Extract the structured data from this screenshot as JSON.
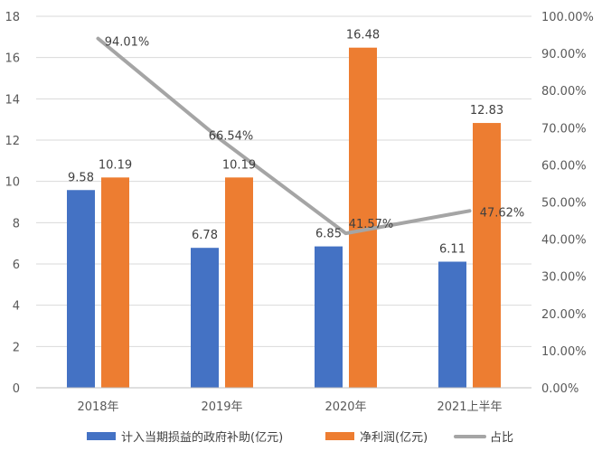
{
  "chart_data": {
    "type": "bar",
    "categories": [
      "2018年",
      "2019年",
      "2020年",
      "2021上半年"
    ],
    "series": [
      {
        "name": "计入当期损益的政府补助(亿元)",
        "kind": "bar",
        "axis": "left",
        "color": "#4472C4",
        "values": [
          9.58,
          6.78,
          6.85,
          6.11
        ],
        "labels": [
          "9.58",
          "6.78",
          "6.85",
          "6.11"
        ]
      },
      {
        "name": "净利润(亿元)",
        "kind": "bar",
        "axis": "left",
        "color": "#ED7D31",
        "values": [
          10.19,
          10.19,
          16.48,
          12.83
        ],
        "labels": [
          "10.19",
          "10.19",
          "16.48",
          "12.83"
        ]
      },
      {
        "name": "占比",
        "kind": "line",
        "axis": "right",
        "color": "#A5A5A5",
        "values": [
          94.01,
          66.54,
          41.57,
          47.62
        ],
        "labels": [
          "94.01%",
          "66.54%",
          "41.57%",
          "47.62%"
        ]
      }
    ],
    "y_left": {
      "ylim": [
        0,
        18
      ],
      "ticks": [
        "0",
        "2",
        "4",
        "6",
        "8",
        "10",
        "12",
        "14",
        "16",
        "18"
      ]
    },
    "y_right": {
      "ylim": [
        0,
        100
      ],
      "ticks": [
        "0.00%",
        "10.00%",
        "20.00%",
        "30.00%",
        "40.00%",
        "50.00%",
        "60.00%",
        "70.00%",
        "80.00%",
        "90.00%",
        "100.00%"
      ]
    },
    "grid": true,
    "legend_position": "bottom"
  }
}
